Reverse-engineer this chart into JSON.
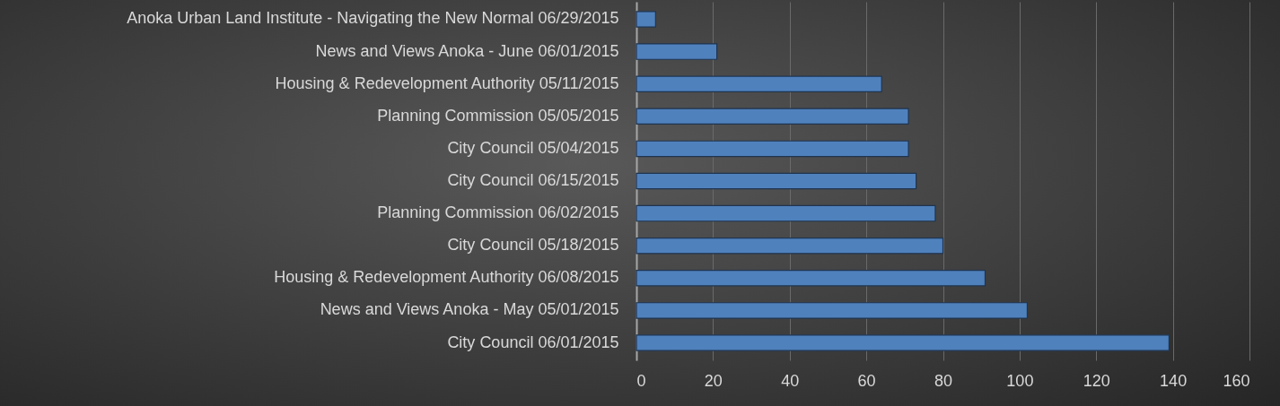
{
  "chart_data": {
    "type": "bar",
    "orientation": "horizontal",
    "categories": [
      "Anoka Urban Land Institute - Navigating the New Normal 06/29/2015",
      "News and Views Anoka - June 06/01/2015",
      "Housing & Redevelopment Authority 05/11/2015",
      "Planning Commission 05/05/2015",
      "City Council 05/04/2015",
      "City Council 06/15/2015",
      "Planning Commission 06/02/2015",
      "City Council 05/18/2015",
      "Housing & Redevelopment Authority 06/08/2015",
      "News and Views Anoka - May 05/01/2015",
      "City Council 06/01/2015"
    ],
    "values": [
      5,
      21,
      64,
      71,
      71,
      73,
      78,
      80,
      91,
      102,
      139
    ],
    "color": "#4f81bd",
    "xlim": [
      0,
      160
    ],
    "xticks": [
      0,
      20,
      40,
      60,
      80,
      100,
      120,
      140,
      160
    ],
    "grid": "x"
  }
}
